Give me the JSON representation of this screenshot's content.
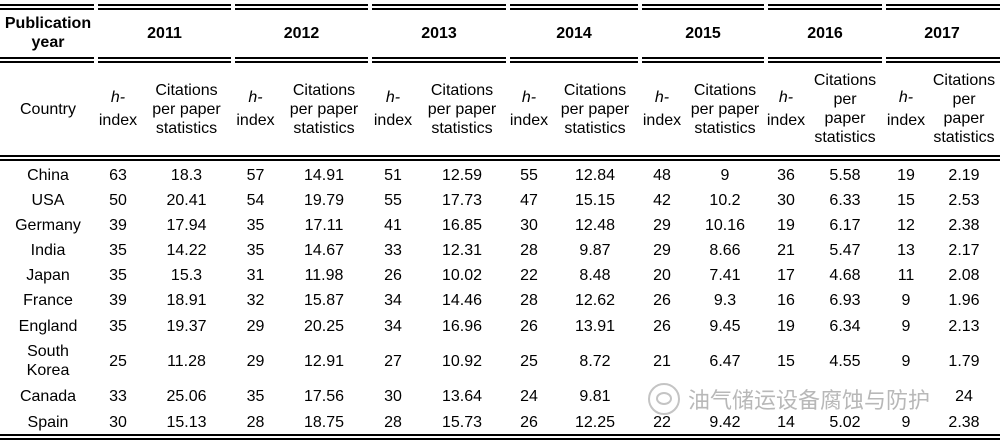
{
  "header": {
    "year_label": "Publication year",
    "years": [
      "2011",
      "2012",
      "2013",
      "2014",
      "2015",
      "2016",
      "2017"
    ],
    "country_label": "Country",
    "h_index_label_a": "h-",
    "h_index_label_b": "index",
    "citations_label": "Citations per paper statistics"
  },
  "rows": [
    {
      "country": "China",
      "values": [
        "63",
        "18.3",
        "57",
        "14.91",
        "51",
        "12.59",
        "55",
        "12.84",
        "48",
        "9",
        "36",
        "5.58",
        "19",
        "2.19"
      ]
    },
    {
      "country": "USA",
      "values": [
        "50",
        "20.41",
        "54",
        "19.79",
        "55",
        "17.73",
        "47",
        "15.15",
        "42",
        "10.2",
        "30",
        "6.33",
        "15",
        "2.53"
      ]
    },
    {
      "country": "Germany",
      "values": [
        "39",
        "17.94",
        "35",
        "17.11",
        "41",
        "16.85",
        "30",
        "12.48",
        "29",
        "10.16",
        "19",
        "6.17",
        "12",
        "2.38"
      ]
    },
    {
      "country": "India",
      "values": [
        "35",
        "14.22",
        "35",
        "14.67",
        "33",
        "12.31",
        "28",
        "9.87",
        "29",
        "8.66",
        "21",
        "5.47",
        "13",
        "2.17"
      ]
    },
    {
      "country": "Japan",
      "values": [
        "35",
        "15.3",
        "31",
        "11.98",
        "26",
        "10.02",
        "22",
        "8.48",
        "20",
        "7.41",
        "17",
        "4.68",
        "11",
        "2.08"
      ]
    },
    {
      "country": "France",
      "values": [
        "39",
        "18.91",
        "32",
        "15.87",
        "34",
        "14.46",
        "28",
        "12.62",
        "26",
        "9.3",
        "16",
        "6.93",
        "9",
        "1.96"
      ]
    },
    {
      "country": "England",
      "values": [
        "35",
        "19.37",
        "29",
        "20.25",
        "34",
        "16.96",
        "26",
        "13.91",
        "26",
        "9.45",
        "19",
        "6.34",
        "9",
        "2.13"
      ]
    },
    {
      "country": "South Korea",
      "values": [
        "25",
        "11.28",
        "29",
        "12.91",
        "27",
        "10.92",
        "25",
        "8.72",
        "21",
        "6.47",
        "15",
        "4.55",
        "9",
        "1.79"
      ]
    },
    {
      "country": "Canada",
      "values": [
        "33",
        "25.06",
        "35",
        "17.56",
        "30",
        "13.64",
        "24",
        "9.81",
        "",
        "",
        "",
        "",
        "",
        "24"
      ]
    },
    {
      "country": "Spain",
      "values": [
        "30",
        "15.13",
        "28",
        "18.75",
        "28",
        "15.73",
        "26",
        "12.25",
        "22",
        "9.42",
        "14",
        "5.02",
        "9",
        "2.38"
      ]
    }
  ],
  "watermark": {
    "icon": "wechat-icon",
    "text": "油气储运设备腐蚀与防护"
  }
}
